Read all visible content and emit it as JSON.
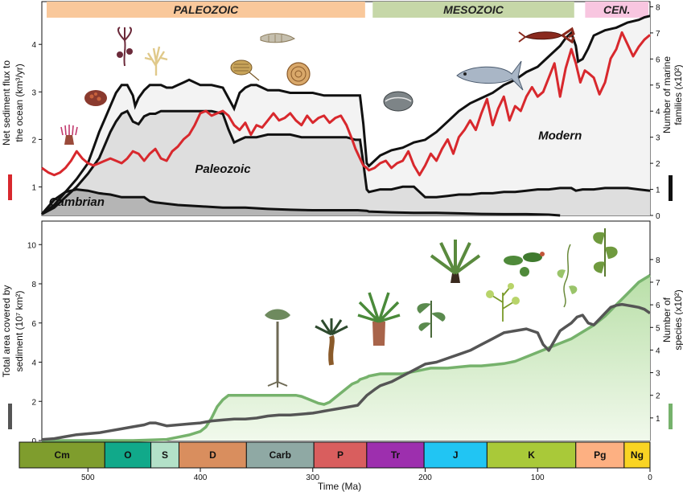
{
  "chart_data": [
    {
      "type": "line",
      "panel": "top",
      "eras": [
        {
          "name": "PALEOZOIC",
          "from": 541,
          "to": 252,
          "color": "#f9c89b"
        },
        {
          "name": "MESOZOIC",
          "from": 251,
          "to": 66,
          "color": "#c6d7a8"
        },
        {
          "name": "CEN.",
          "from": 62,
          "to": 0,
          "color": "#f8c6e0"
        }
      ],
      "ylabel": "Net sediment flux to the ocean (km³/yr)",
      "ylabel_lines": [
        "Net sediment flux to",
        "the ocean (km³/yr)"
      ],
      "ylim": [
        0.4,
        4.9
      ],
      "yticks": [
        1,
        2,
        3,
        4
      ],
      "y2label_lines": [
        "Number of marine",
        "families (x10²)"
      ],
      "y2lim": [
        0,
        8.2
      ],
      "y2ticks": [
        0,
        1,
        2,
        3,
        4,
        5,
        6,
        7,
        8
      ],
      "xlim": [
        541,
        0
      ],
      "fauna_labels": [
        {
          "text": "Cambrian",
          "x": 510,
          "y": 0.6
        },
        {
          "text": "Paleozoic",
          "x": 380,
          "y": 1.3
        },
        {
          "text": "Modern",
          "x": 80,
          "y": 2.0
        }
      ],
      "series": [
        {
          "role": "sediment_flux",
          "axis": "left",
          "color": "#d8282d",
          "x": [
            541,
            535,
            530,
            525,
            520,
            515,
            510,
            505,
            500,
            495,
            490,
            485,
            480,
            475,
            470,
            465,
            460,
            455,
            450,
            445,
            440,
            435,
            430,
            425,
            420,
            415,
            410,
            405,
            400,
            395,
            390,
            385,
            380,
            375,
            370,
            365,
            360,
            355,
            350,
            345,
            340,
            335,
            330,
            325,
            320,
            315,
            310,
            305,
            300,
            295,
            290,
            285,
            280,
            275,
            270,
            265,
            262,
            258,
            255,
            252,
            250,
            245,
            240,
            235,
            230,
            225,
            220,
            215,
            210,
            205,
            200,
            195,
            190,
            185,
            180,
            175,
            170,
            165,
            160,
            155,
            150,
            145,
            140,
            135,
            130,
            125,
            120,
            115,
            110,
            105,
            100,
            95,
            90,
            85,
            80,
            75,
            70,
            66,
            62,
            58,
            55,
            50,
            45,
            40,
            35,
            30,
            25,
            20,
            15,
            10,
            5,
            0
          ],
          "y": [
            1.4,
            1.3,
            1.25,
            1.3,
            1.4,
            1.55,
            1.75,
            1.6,
            1.5,
            1.45,
            1.5,
            1.55,
            1.6,
            1.55,
            1.5,
            1.6,
            1.75,
            1.7,
            1.55,
            1.7,
            1.8,
            1.6,
            1.55,
            1.75,
            1.85,
            2.0,
            2.1,
            2.3,
            2.55,
            2.6,
            2.5,
            2.55,
            2.6,
            2.5,
            2.3,
            2.2,
            2.35,
            2.1,
            2.3,
            2.25,
            2.4,
            2.55,
            2.4,
            2.45,
            2.55,
            2.4,
            2.3,
            2.5,
            2.35,
            2.45,
            2.5,
            2.35,
            2.45,
            2.5,
            2.3,
            2.0,
            1.8,
            1.6,
            1.45,
            1.4,
            1.35,
            1.4,
            1.5,
            1.55,
            1.4,
            1.5,
            1.55,
            1.75,
            1.45,
            1.25,
            1.45,
            1.7,
            1.55,
            1.8,
            2.0,
            1.7,
            2.05,
            2.2,
            2.4,
            2.2,
            2.55,
            2.85,
            2.3,
            2.65,
            2.9,
            2.4,
            2.7,
            2.6,
            2.9,
            3.1,
            2.9,
            3.0,
            3.3,
            3.6,
            2.9,
            3.5,
            3.9,
            3.6,
            3.2,
            3.45,
            3.4,
            3.3,
            2.95,
            3.2,
            3.7,
            3.9,
            4.25,
            4.0,
            3.75,
            3.95,
            4.1,
            4.2
          ]
        },
        {
          "role": "marine_families_total",
          "axis": "right",
          "color": "#111111",
          "x": [
            541,
            530,
            520,
            510,
            500,
            495,
            490,
            485,
            480,
            475,
            470,
            465,
            460,
            458,
            455,
            450,
            445,
            440,
            435,
            430,
            425,
            420,
            415,
            410,
            400,
            390,
            380,
            375,
            370,
            365,
            360,
            355,
            350,
            345,
            340,
            330,
            320,
            310,
            300,
            290,
            280,
            270,
            262,
            258,
            255,
            252,
            250,
            245,
            240,
            230,
            220,
            210,
            200,
            190,
            180,
            170,
            160,
            150,
            140,
            130,
            120,
            110,
            100,
            90,
            80,
            75,
            70,
            66,
            64,
            60,
            55,
            50,
            40,
            30,
            20,
            10,
            5,
            0
          ],
          "y": [
            0.05,
            0.4,
            0.9,
            1.4,
            2.0,
            2.6,
            3.2,
            3.7,
            4.2,
            4.7,
            5.0,
            5.0,
            4.6,
            4.2,
            4.5,
            4.8,
            5.0,
            5.0,
            5.0,
            4.9,
            4.9,
            5.0,
            5.1,
            5.2,
            5.0,
            5.0,
            4.9,
            4.5,
            4.1,
            4.7,
            4.9,
            5.0,
            5.0,
            4.9,
            4.8,
            4.8,
            4.7,
            4.7,
            4.7,
            4.6,
            4.6,
            4.6,
            4.6,
            4.6,
            3.5,
            2.0,
            1.9,
            2.1,
            2.3,
            2.5,
            2.6,
            2.8,
            2.9,
            3.2,
            3.6,
            4.0,
            4.3,
            4.5,
            4.7,
            5.0,
            5.2,
            5.5,
            5.7,
            6.1,
            6.5,
            6.8,
            7.0,
            6.5,
            5.9,
            6.0,
            6.4,
            6.9,
            7.1,
            7.2,
            7.4,
            7.5,
            7.6,
            7.65
          ]
        },
        {
          "role": "paleozoic_fauna_lower",
          "axis": "right",
          "color": "#111111",
          "x": [
            541,
            530,
            520,
            510,
            500,
            490,
            485,
            480,
            475,
            470,
            465,
            460,
            455,
            450,
            445,
            440,
            435,
            430,
            420,
            410,
            400,
            390,
            380,
            375,
            370,
            365,
            360,
            350,
            340,
            330,
            320,
            310,
            300,
            290,
            280,
            270,
            262,
            258,
            255,
            252,
            250,
            240,
            230,
            220,
            210,
            200,
            190,
            180,
            170,
            160,
            150,
            140,
            130,
            120,
            110,
            100,
            90,
            80,
            70,
            66,
            60,
            50,
            40,
            30,
            20,
            10,
            0
          ],
          "y": [
            0.05,
            0.3,
            0.7,
            1.1,
            1.6,
            2.2,
            2.7,
            3.2,
            3.6,
            3.9,
            4.0,
            3.6,
            3.5,
            3.8,
            3.9,
            3.9,
            4.0,
            4.0,
            4.0,
            4.0,
            4.0,
            4.0,
            3.9,
            3.3,
            2.8,
            2.9,
            3.0,
            3.0,
            3.1,
            3.1,
            3.1,
            3.0,
            3.0,
            3.0,
            3.0,
            3.0,
            2.9,
            2.9,
            2.0,
            1.0,
            0.9,
            1.0,
            1.0,
            1.1,
            1.1,
            0.7,
            0.7,
            0.75,
            0.8,
            0.8,
            0.85,
            0.85,
            0.9,
            0.9,
            0.95,
            1.0,
            1.0,
            1.05,
            1.05,
            0.95,
            1.0,
            1.0,
            1.05,
            1.05,
            1.05,
            1.0,
            0.95
          ]
        },
        {
          "role": "cambrian_fauna",
          "axis": "right",
          "color": "#111111",
          "x": [
            541,
            530,
            520,
            510,
            500,
            490,
            480,
            470,
            460,
            450,
            445,
            440,
            430,
            420,
            400,
            380,
            360,
            340,
            320,
            300,
            280,
            260,
            252,
            250,
            230,
            210,
            190,
            170,
            150,
            130,
            110,
            90,
            80
          ],
          "y": [
            0.05,
            0.6,
            0.9,
            1.0,
            0.95,
            0.85,
            0.8,
            0.7,
            0.7,
            0.7,
            0.55,
            0.5,
            0.45,
            0.4,
            0.35,
            0.3,
            0.3,
            0.25,
            0.22,
            0.2,
            0.2,
            0.2,
            0.18,
            0.15,
            0.12,
            0.1,
            0.1,
            0.08,
            0.06,
            0.05,
            0.05,
            0.03,
            0.0
          ]
        }
      ]
    },
    {
      "type": "area",
      "panel": "bottom",
      "xlabel": "Time (Ma)",
      "xlim": [
        541,
        0
      ],
      "xticks": [
        500,
        400,
        300,
        200,
        100,
        0
      ],
      "ylabel": "Total area covered by sediment (10⁷ km²)",
      "ylabel_lines": [
        "Total area covered by",
        "sediment (10⁷ km²)"
      ],
      "ylim": [
        0,
        11.2
      ],
      "yticks": [
        0,
        2,
        4,
        6,
        8,
        10
      ],
      "y2label_lines": [
        "Number of",
        "species (x10²)"
      ],
      "y2lim": [
        0,
        9.7
      ],
      "y2ticks": [
        1,
        2,
        3,
        4,
        5,
        6,
        7,
        8
      ],
      "periods": [
        {
          "name": "Cm",
          "from": 541,
          "to": 485,
          "color": "#7f9d2d"
        },
        {
          "name": "O",
          "from": 485,
          "to": 444,
          "color": "#11a98a"
        },
        {
          "name": "S",
          "from": 444,
          "to": 419,
          "color": "#b3e1c8"
        },
        {
          "name": "D",
          "from": 419,
          "to": 359,
          "color": "#d98e5e"
        },
        {
          "name": "Carb",
          "from": 359,
          "to": 299,
          "color": "#8fa9a4"
        },
        {
          "name": "P",
          "from": 299,
          "to": 252,
          "color": "#d95e5e"
        },
        {
          "name": "Tr",
          "from": 252,
          "to": 201,
          "color": "#9d2fae"
        },
        {
          "name": "J",
          "from": 201,
          "to": 145,
          "color": "#21c5f3"
        },
        {
          "name": "K",
          "from": 145,
          "to": 66,
          "color": "#a9c939"
        },
        {
          "name": "Pg",
          "from": 66,
          "to": 23,
          "color": "#fdb082"
        },
        {
          "name": "Ng",
          "from": 23,
          "to": 0,
          "color": "#f9d423"
        }
      ],
      "series": [
        {
          "role": "sediment_area",
          "axis": "left",
          "color": "#555555",
          "x": [
            541,
            530,
            520,
            510,
            500,
            490,
            480,
            470,
            460,
            450,
            445,
            440,
            430,
            420,
            410,
            400,
            390,
            380,
            370,
            360,
            350,
            340,
            330,
            320,
            310,
            300,
            295,
            290,
            285,
            280,
            270,
            260,
            252,
            245,
            240,
            230,
            220,
            210,
            200,
            190,
            180,
            170,
            160,
            150,
            140,
            130,
            120,
            110,
            100,
            95,
            90,
            85,
            80,
            75,
            70,
            65,
            60,
            55,
            50,
            45,
            40,
            35,
            30,
            25,
            20,
            15,
            10,
            5,
            0
          ],
          "y": [
            0.05,
            0.1,
            0.2,
            0.3,
            0.35,
            0.4,
            0.5,
            0.6,
            0.7,
            0.8,
            0.9,
            0.9,
            0.75,
            0.8,
            0.85,
            0.9,
            1.0,
            1.05,
            1.1,
            1.1,
            1.15,
            1.25,
            1.3,
            1.3,
            1.35,
            1.4,
            1.45,
            1.5,
            1.55,
            1.6,
            1.7,
            1.8,
            2.3,
            2.6,
            2.8,
            3.0,
            3.3,
            3.6,
            3.9,
            4.0,
            4.2,
            4.4,
            4.6,
            4.9,
            5.2,
            5.5,
            5.6,
            5.7,
            5.5,
            4.9,
            4.6,
            5.1,
            5.6,
            5.8,
            6.0,
            6.3,
            6.4,
            6.0,
            5.9,
            6.2,
            6.5,
            6.8,
            6.9,
            6.95,
            6.9,
            6.85,
            6.8,
            6.7,
            6.5
          ]
        },
        {
          "role": "species",
          "axis": "right",
          "color": "#76b26c",
          "x": [
            541,
            500,
            460,
            430,
            420,
            410,
            400,
            395,
            390,
            385,
            380,
            375,
            370,
            365,
            360,
            355,
            350,
            345,
            340,
            335,
            330,
            325,
            320,
            315,
            310,
            305,
            300,
            295,
            290,
            285,
            280,
            275,
            270,
            265,
            260,
            258,
            255,
            252,
            250,
            245,
            240,
            235,
            230,
            225,
            220,
            215,
            210,
            205,
            200,
            195,
            190,
            180,
            170,
            160,
            150,
            140,
            130,
            120,
            110,
            100,
            90,
            80,
            70,
            60,
            50,
            40,
            30,
            20,
            10,
            0
          ],
          "y": [
            0.0,
            0.0,
            0.0,
            0.05,
            0.15,
            0.25,
            0.4,
            0.6,
            1.0,
            1.5,
            1.8,
            2.0,
            2.0,
            2.0,
            2.0,
            2.0,
            2.0,
            2.0,
            2.0,
            2.0,
            2.0,
            2.0,
            2.0,
            2.0,
            1.95,
            1.85,
            1.75,
            1.65,
            1.6,
            1.7,
            1.9,
            2.1,
            2.3,
            2.5,
            2.6,
            2.7,
            2.75,
            2.8,
            2.85,
            2.9,
            2.95,
            2.95,
            2.95,
            2.95,
            2.95,
            3.0,
            3.05,
            3.1,
            3.15,
            3.2,
            3.2,
            3.2,
            3.25,
            3.3,
            3.3,
            3.35,
            3.4,
            3.5,
            3.7,
            3.9,
            4.1,
            4.3,
            4.5,
            4.8,
            5.1,
            5.5,
            6.0,
            6.5,
            7.0,
            7.3
          ]
        }
      ]
    }
  ],
  "legend_swatches": {
    "red": "#d8282d",
    "black": "#111111",
    "gray": "#555555",
    "green": "#76b26c"
  },
  "icons": {
    "top_panel": [
      "sea-anemone-icon",
      "coral-icon",
      "crinoid-icon",
      "bryozoan-icon",
      "trilobite-icon",
      "nautiloid-icon",
      "ammonite-icon",
      "bivalve-icon",
      "fish-icon",
      "lobster-icon"
    ],
    "bottom_panel": [
      "early-tree-icon",
      "palm-fern-icon",
      "cycad-icon",
      "seed-fern-icon",
      "tree-fern-icon",
      "flowering-plant-icon",
      "water-lily-icon",
      "vine-icon",
      "broadleaf-plant-icon"
    ]
  }
}
